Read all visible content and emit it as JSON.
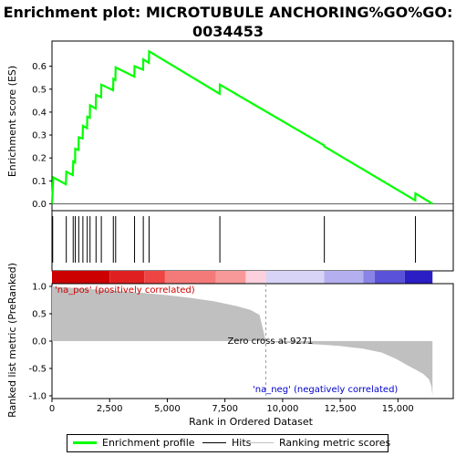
{
  "chart_data": {
    "type": "line",
    "title_line1": "Enrichment plot: MICROTUBULE ANCHORING%GO%GO:",
    "title_line2": "0034453",
    "top_panel": {
      "ylabel": "Enrichment score (ES)",
      "ylim": [
        -0.03,
        0.71
      ],
      "yticks": [
        "0.0",
        "0.1",
        "0.2",
        "0.3",
        "0.4",
        "0.5",
        "0.6"
      ],
      "ytick_values": [
        0.0,
        0.1,
        0.2,
        0.3,
        0.4,
        0.5,
        0.6
      ],
      "series_color": "#00ff00",
      "es_points": [
        [
          0,
          0.0
        ],
        [
          60,
          0.115
        ],
        [
          600,
          0.085
        ],
        [
          620,
          0.14
        ],
        [
          900,
          0.125
        ],
        [
          920,
          0.185
        ],
        [
          1000,
          0.18
        ],
        [
          1010,
          0.24
        ],
        [
          1150,
          0.235
        ],
        [
          1160,
          0.29
        ],
        [
          1330,
          0.285
        ],
        [
          1340,
          0.34
        ],
        [
          1520,
          0.33
        ],
        [
          1530,
          0.38
        ],
        [
          1640,
          0.375
        ],
        [
          1650,
          0.43
        ],
        [
          1900,
          0.415
        ],
        [
          1910,
          0.475
        ],
        [
          2130,
          0.465
        ],
        [
          2140,
          0.52
        ],
        [
          2650,
          0.495
        ],
        [
          2660,
          0.545
        ],
        [
          2750,
          0.54
        ],
        [
          2760,
          0.595
        ],
        [
          3570,
          0.555
        ],
        [
          3580,
          0.6
        ],
        [
          3950,
          0.585
        ],
        [
          3960,
          0.63
        ],
        [
          4200,
          0.615
        ],
        [
          4210,
          0.665
        ],
        [
          7270,
          0.48
        ],
        [
          7280,
          0.52
        ],
        [
          11800,
          0.255
        ],
        [
          11810,
          0.25
        ],
        [
          15750,
          0.015
        ],
        [
          15760,
          0.045
        ],
        [
          16500,
          0.0
        ]
      ]
    },
    "hits": [
      30,
      620,
      920,
      1010,
      1160,
      1340,
      1530,
      1650,
      1910,
      2140,
      2660,
      2760,
      3580,
      3960,
      4210,
      7280,
      11810,
      15760
    ],
    "gradient_bar": [
      {
        "from": 0,
        "to": 2500,
        "color": "#cc0000"
      },
      {
        "from": 2500,
        "to": 4000,
        "color": "#e02020"
      },
      {
        "from": 4000,
        "to": 4900,
        "color": "#ee4444"
      },
      {
        "from": 4900,
        "to": 7100,
        "color": "#f47a7a"
      },
      {
        "from": 7100,
        "to": 8400,
        "color": "#f89999"
      },
      {
        "from": 8400,
        "to": 9271,
        "color": "#fcd0dc"
      },
      {
        "from": 9271,
        "to": 11800,
        "color": "#d8d4f8"
      },
      {
        "from": 11800,
        "to": 13500,
        "color": "#b4b0f0"
      },
      {
        "from": 13500,
        "to": 14000,
        "color": "#8a84e6"
      },
      {
        "from": 14000,
        "to": 15300,
        "color": "#5a52d8"
      },
      {
        "from": 15300,
        "to": 16500,
        "color": "#2a1ec4"
      }
    ],
    "bottom_panel": {
      "ylabel": "Ranked list metric (PreRanked)",
      "ylim": [
        -1.05,
        1.05
      ],
      "yticks": [
        "1.0",
        "0.5",
        "0.0",
        "-0.5",
        "-1.0"
      ],
      "ytick_values": [
        1.0,
        0.5,
        0.0,
        -0.5,
        -1.0
      ],
      "metric_points": [
        [
          0,
          1.0
        ],
        [
          300,
          0.99
        ],
        [
          1000,
          0.97
        ],
        [
          2000,
          0.94
        ],
        [
          3000,
          0.91
        ],
        [
          4000,
          0.88
        ],
        [
          5000,
          0.84
        ],
        [
          6000,
          0.79
        ],
        [
          7000,
          0.73
        ],
        [
          8000,
          0.64
        ],
        [
          8600,
          0.57
        ],
        [
          9000,
          0.48
        ],
        [
          9271,
          0.0
        ],
        [
          9500,
          -0.02
        ],
        [
          10500,
          -0.04
        ],
        [
          11500,
          -0.06
        ],
        [
          12500,
          -0.09
        ],
        [
          13500,
          -0.14
        ],
        [
          14300,
          -0.21
        ],
        [
          14900,
          -0.32
        ],
        [
          15400,
          -0.44
        ],
        [
          15800,
          -0.53
        ],
        [
          16100,
          -0.6
        ],
        [
          16350,
          -0.7
        ],
        [
          16450,
          -0.82
        ],
        [
          16500,
          -1.0
        ]
      ],
      "fill_color": "#c0c0c0",
      "zero_cross_label": "Zero cross at 9271",
      "zero_cross_x": 9271,
      "pos_label": "'na_pos' (positively correlated)",
      "pos_color": "#cc0000",
      "neg_label": "'na_neg' (negatively correlated)",
      "neg_color": "#0000cc"
    },
    "xlabel": "Rank in Ordered Dataset",
    "xlim": [
      0,
      17400
    ],
    "xticks": [
      "0",
      "2,500",
      "5,000",
      "7,500",
      "10,000",
      "12,500",
      "15,000"
    ],
    "xtick_values": [
      0,
      2500,
      5000,
      7500,
      10000,
      12500,
      15000
    ],
    "legend": [
      {
        "label": "Enrichment profile",
        "color": "#00ff00"
      },
      {
        "label": "Hits",
        "color": "#000000"
      },
      {
        "label": "Ranking metric scores",
        "color": "#c0c0c0"
      }
    ]
  }
}
